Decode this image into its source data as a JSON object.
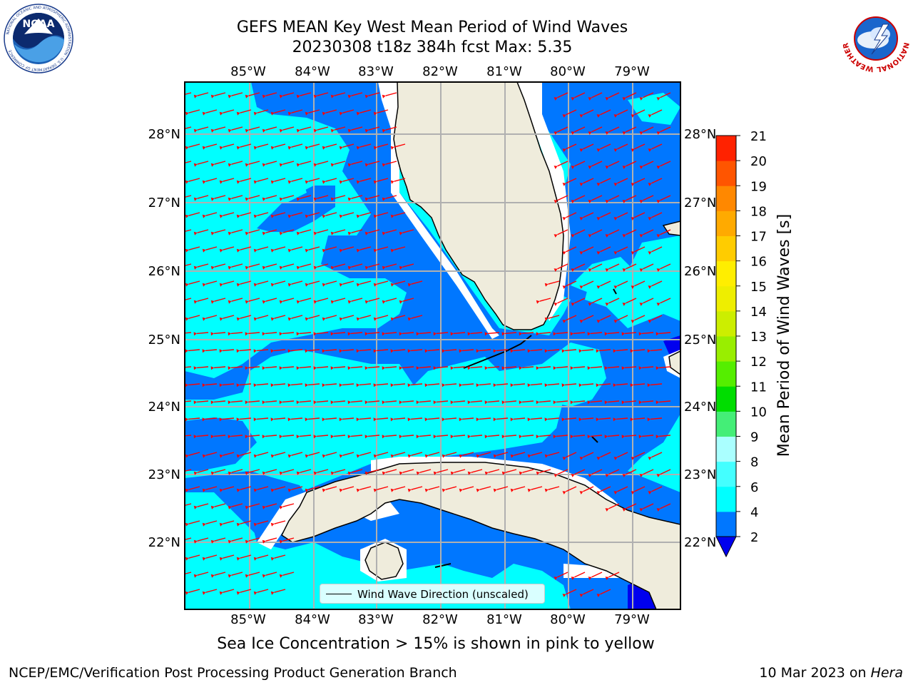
{
  "header": {
    "title_line1": "GEFS MEAN Key West Mean Period of Wind Waves",
    "title_line2": "20230308 t18z 384h fcst   Max: 5.35"
  },
  "logos": {
    "noaa_text": "NOAA",
    "noaa_ring_text": "NATIONAL OCEANIC AND ATMOSPHERIC ADMINISTRATION · U.S. DEPARTMENT OF COMMERCE",
    "nws_ring_text": "NATIONAL WEATHER SERVICE"
  },
  "map": {
    "lon_labels": [
      "85°W",
      "84°W",
      "83°W",
      "82°W",
      "81°W",
      "80°W",
      "79°W"
    ],
    "lat_labels": [
      "28°N",
      "27°N",
      "26°N",
      "25°N",
      "24°N",
      "23°N",
      "22°N"
    ],
    "legend_label": "Wind Wave Direction (unscaled)",
    "colors": {
      "ocean_light": "#00ffff",
      "ocean_mid": "#0077ff",
      "land": "#efecdc",
      "arrows": "#ff0000",
      "gridlines": "#b0b0b0"
    }
  },
  "colorbar": {
    "label": "Mean Period of Wind Waves [s]",
    "ticks": [
      "2",
      "4",
      "6",
      "8",
      "9",
      "10",
      "11",
      "12",
      "13",
      "14",
      "15",
      "16",
      "17",
      "18",
      "19",
      "20",
      "21"
    ],
    "colors": [
      "#0077ff",
      "#00ffff",
      "#44ffff",
      "#aaffff",
      "#44ee77",
      "#00dd00",
      "#55ee00",
      "#99ee00",
      "#ccee00",
      "#eeee00",
      "#ffee00",
      "#ffcc00",
      "#ffaa00",
      "#ff8800",
      "#ff5500",
      "#ff2200",
      "#ff0000"
    ],
    "under_color": "#0000ee"
  },
  "footer": {
    "ice_note": "Sea Ice Concentration > 15% is shown in pink to yellow",
    "left": "NCEP/EMC/Verification Post Processing Product Generation Branch",
    "right_date": "10 Mar 2023 on ",
    "right_machine": "Hera"
  }
}
